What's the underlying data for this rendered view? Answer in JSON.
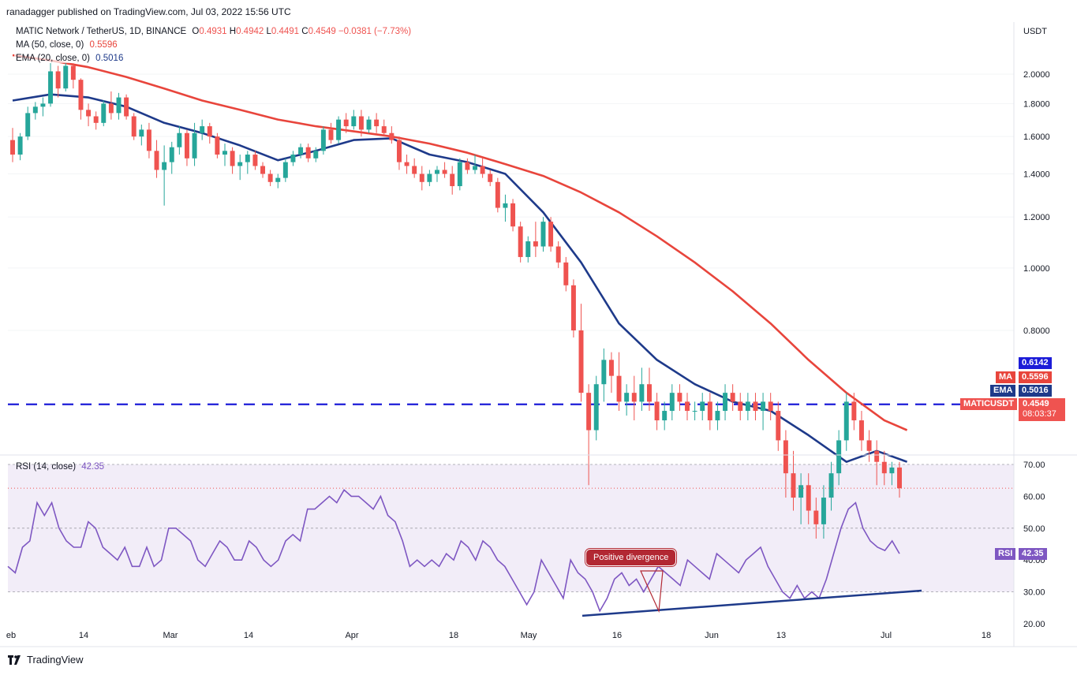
{
  "header": {
    "publisher": "ranadagger published on TradingView.com, Jul 03, 2022 15:56 UTC"
  },
  "legend": {
    "symbol_line": {
      "name": "MATIC Network / TetherUS, 1D, BINANCE",
      "open_label": "O",
      "open": "0.4931",
      "high_label": "H",
      "high": "0.4942",
      "low_label": "L",
      "low": "0.4491",
      "close_label": "C",
      "close": "0.4549",
      "change": "−0.0381 (−7.73%)"
    },
    "ma_line": {
      "name": "MA (50, close, 0)",
      "value": "0.5596"
    },
    "ema_line": {
      "name": "EMA (20, close, 0)",
      "value": "0.5016"
    },
    "rsi_line": {
      "name": "RSI (14, close)",
      "value": "42.35"
    }
  },
  "price_axis": {
    "currency": "USDT",
    "ticks": [
      "2.0000",
      "1.8000",
      "1.6000",
      "1.4000",
      "1.2000",
      "1.0000",
      "0.8000"
    ],
    "badges": {
      "level": "0.6142",
      "ma_label": "MA",
      "ma": "0.5596",
      "ema_label": "EMA",
      "ema": "0.5016",
      "symbol_label": "MATICUSDT",
      "last": "0.4549",
      "countdown": "08:03:37"
    }
  },
  "rsi_axis": {
    "ticks": [
      "70.00",
      "60.00",
      "50.00",
      "40.00",
      "30.00",
      "20.00"
    ],
    "badge_label": "RSI",
    "badge_value": "42.35"
  },
  "time_axis": {
    "ticks": [
      "eb",
      "14",
      "Mar",
      "14",
      "Apr",
      "18",
      "May",
      "16",
      "Jun",
      "13",
      "Jul",
      "18"
    ]
  },
  "annotation": {
    "text": "Positive divergence"
  },
  "footer": {
    "brand": "TradingView"
  },
  "colors": {
    "up": "#26a69a",
    "down": "#ef5350",
    "ma": "#e8453c",
    "ema": "#1e3a8a",
    "level_line": "#1c1cd8",
    "rsi_line": "#7e57c2",
    "rsi_band": "#ede7f6",
    "trendline": "#1e3a8a"
  },
  "chart_data": {
    "type": "candlestick",
    "symbol": "MATICUSDT",
    "interval": "1D",
    "x_range": [
      "2022-02-01",
      "2022-07-03"
    ],
    "y_range": [
      0.35,
      2.2
    ],
    "horizontal_level": 0.6142,
    "candles_ohlc": [
      [
        1.58,
        1.65,
        1.46,
        1.5
      ],
      [
        1.5,
        1.62,
        1.47,
        1.6
      ],
      [
        1.6,
        1.78,
        1.58,
        1.74
      ],
      [
        1.74,
        1.81,
        1.7,
        1.78
      ],
      [
        1.78,
        1.84,
        1.72,
        1.8
      ],
      [
        1.8,
        2.08,
        1.78,
        2.02
      ],
      [
        2.02,
        2.06,
        1.84,
        1.9
      ],
      [
        1.9,
        2.08,
        1.88,
        2.06
      ],
      [
        2.06,
        2.08,
        1.9,
        1.96
      ],
      [
        1.96,
        1.97,
        1.7,
        1.76
      ],
      [
        1.76,
        1.8,
        1.66,
        1.72
      ],
      [
        1.72,
        1.75,
        1.64,
        1.68
      ],
      [
        1.68,
        1.82,
        1.66,
        1.8
      ],
      [
        1.8,
        1.88,
        1.7,
        1.74
      ],
      [
        1.74,
        1.87,
        1.7,
        1.84
      ],
      [
        1.84,
        1.86,
        1.7,
        1.72
      ],
      [
        1.72,
        1.74,
        1.58,
        1.6
      ],
      [
        1.6,
        1.67,
        1.55,
        1.64
      ],
      [
        1.64,
        1.68,
        1.48,
        1.52
      ],
      [
        1.52,
        1.58,
        1.38,
        1.42
      ],
      [
        1.42,
        1.55,
        1.25,
        1.46
      ],
      [
        1.46,
        1.57,
        1.4,
        1.54
      ],
      [
        1.54,
        1.66,
        1.5,
        1.62
      ],
      [
        1.62,
        1.64,
        1.44,
        1.48
      ],
      [
        1.48,
        1.68,
        1.44,
        1.62
      ],
      [
        1.62,
        1.7,
        1.58,
        1.66
      ],
      [
        1.66,
        1.68,
        1.56,
        1.6
      ],
      [
        1.6,
        1.62,
        1.48,
        1.5
      ],
      [
        1.5,
        1.56,
        1.44,
        1.52
      ],
      [
        1.52,
        1.54,
        1.4,
        1.44
      ],
      [
        1.44,
        1.5,
        1.37,
        1.46
      ],
      [
        1.46,
        1.52,
        1.4,
        1.5
      ],
      [
        1.5,
        1.52,
        1.42,
        1.44
      ],
      [
        1.44,
        1.46,
        1.38,
        1.4
      ],
      [
        1.4,
        1.42,
        1.34,
        1.36
      ],
      [
        1.36,
        1.4,
        1.33,
        1.38
      ],
      [
        1.38,
        1.48,
        1.36,
        1.46
      ],
      [
        1.46,
        1.52,
        1.44,
        1.5
      ],
      [
        1.5,
        1.56,
        1.48,
        1.54
      ],
      [
        1.54,
        1.56,
        1.46,
        1.48
      ],
      [
        1.48,
        1.54,
        1.46,
        1.52
      ],
      [
        1.52,
        1.66,
        1.5,
        1.64
      ],
      [
        1.64,
        1.68,
        1.56,
        1.58
      ],
      [
        1.58,
        1.72,
        1.56,
        1.7
      ],
      [
        1.7,
        1.74,
        1.62,
        1.66
      ],
      [
        1.66,
        1.76,
        1.64,
        1.72
      ],
      [
        1.72,
        1.76,
        1.6,
        1.64
      ],
      [
        1.64,
        1.72,
        1.62,
        1.7
      ],
      [
        1.7,
        1.74,
        1.62,
        1.66
      ],
      [
        1.66,
        1.7,
        1.6,
        1.62
      ],
      [
        1.62,
        1.66,
        1.56,
        1.58
      ],
      [
        1.58,
        1.6,
        1.42,
        1.46
      ],
      [
        1.46,
        1.5,
        1.4,
        1.44
      ],
      [
        1.44,
        1.48,
        1.38,
        1.4
      ],
      [
        1.4,
        1.44,
        1.32,
        1.36
      ],
      [
        1.36,
        1.42,
        1.34,
        1.4
      ],
      [
        1.4,
        1.44,
        1.36,
        1.42
      ],
      [
        1.42,
        1.46,
        1.38,
        1.4
      ],
      [
        1.4,
        1.44,
        1.3,
        1.34
      ],
      [
        1.34,
        1.48,
        1.32,
        1.46
      ],
      [
        1.46,
        1.48,
        1.4,
        1.42
      ],
      [
        1.42,
        1.5,
        1.4,
        1.44
      ],
      [
        1.44,
        1.48,
        1.38,
        1.4
      ],
      [
        1.4,
        1.42,
        1.34,
        1.36
      ],
      [
        1.36,
        1.38,
        1.22,
        1.24
      ],
      [
        1.24,
        1.3,
        1.18,
        1.26
      ],
      [
        1.26,
        1.28,
        1.14,
        1.16
      ],
      [
        1.16,
        1.18,
        1.02,
        1.04
      ],
      [
        1.04,
        1.12,
        1.02,
        1.1
      ],
      [
        1.1,
        1.18,
        1.04,
        1.08
      ],
      [
        1.08,
        1.2,
        1.06,
        1.18
      ],
      [
        1.18,
        1.2,
        1.06,
        1.08
      ],
      [
        1.08,
        1.1,
        1.0,
        1.02
      ],
      [
        1.02,
        1.04,
        0.92,
        0.94
      ],
      [
        0.94,
        0.96,
        0.78,
        0.8
      ],
      [
        0.8,
        0.88,
        0.62,
        0.64
      ],
      [
        0.64,
        0.66,
        0.46,
        0.56
      ],
      [
        0.56,
        0.68,
        0.54,
        0.66
      ],
      [
        0.66,
        0.75,
        0.62,
        0.72
      ],
      [
        0.72,
        0.74,
        0.64,
        0.68
      ],
      [
        0.68,
        0.74,
        0.6,
        0.62
      ],
      [
        0.62,
        0.66,
        0.59,
        0.64
      ],
      [
        0.64,
        0.68,
        0.58,
        0.62
      ],
      [
        0.62,
        0.7,
        0.6,
        0.66
      ],
      [
        0.66,
        0.7,
        0.6,
        0.62
      ],
      [
        0.62,
        0.64,
        0.56,
        0.58
      ],
      [
        0.58,
        0.62,
        0.56,
        0.6
      ],
      [
        0.6,
        0.66,
        0.58,
        0.64
      ],
      [
        0.64,
        0.66,
        0.6,
        0.62
      ],
      [
        0.62,
        0.64,
        0.58,
        0.6
      ],
      [
        0.6,
        0.62,
        0.58,
        0.6
      ],
      [
        0.6,
        0.64,
        0.58,
        0.62
      ],
      [
        0.62,
        0.64,
        0.56,
        0.58
      ],
      [
        0.58,
        0.62,
        0.56,
        0.6
      ],
      [
        0.6,
        0.66,
        0.58,
        0.64
      ],
      [
        0.64,
        0.66,
        0.6,
        0.62
      ],
      [
        0.62,
        0.64,
        0.58,
        0.6
      ],
      [
        0.6,
        0.64,
        0.58,
        0.62
      ],
      [
        0.62,
        0.64,
        0.58,
        0.6
      ],
      [
        0.6,
        0.64,
        0.56,
        0.62
      ],
      [
        0.62,
        0.64,
        0.58,
        0.6
      ],
      [
        0.6,
        0.62,
        0.52,
        0.54
      ],
      [
        0.54,
        0.56,
        0.44,
        0.48
      ],
      [
        0.48,
        0.52,
        0.42,
        0.44
      ],
      [
        0.44,
        0.48,
        0.4,
        0.46
      ],
      [
        0.46,
        0.48,
        0.4,
        0.42
      ],
      [
        0.42,
        0.44,
        0.38,
        0.4
      ],
      [
        0.4,
        0.46,
        0.38,
        0.44
      ],
      [
        0.44,
        0.5,
        0.42,
        0.48
      ],
      [
        0.48,
        0.56,
        0.46,
        0.54
      ],
      [
        0.54,
        0.64,
        0.52,
        0.62
      ],
      [
        0.62,
        0.64,
        0.56,
        0.58
      ],
      [
        0.58,
        0.6,
        0.52,
        0.54
      ],
      [
        0.54,
        0.56,
        0.5,
        0.52
      ],
      [
        0.52,
        0.54,
        0.46,
        0.5
      ],
      [
        0.5,
        0.52,
        0.46,
        0.48
      ],
      [
        0.48,
        0.5,
        0.46,
        0.49
      ],
      [
        0.49,
        0.5,
        0.44,
        0.455
      ]
    ],
    "ma50": [
      [
        0,
        2.14
      ],
      [
        5,
        2.1
      ],
      [
        10,
        2.05
      ],
      [
        15,
        1.98
      ],
      [
        20,
        1.9
      ],
      [
        25,
        1.82
      ],
      [
        30,
        1.76
      ],
      [
        35,
        1.7
      ],
      [
        40,
        1.66
      ],
      [
        45,
        1.63
      ],
      [
        50,
        1.6
      ],
      [
        55,
        1.56
      ],
      [
        60,
        1.51
      ],
      [
        65,
        1.45
      ],
      [
        70,
        1.39
      ],
      [
        75,
        1.31
      ],
      [
        80,
        1.22
      ],
      [
        85,
        1.12
      ],
      [
        90,
        1.02
      ],
      [
        95,
        0.92
      ],
      [
        100,
        0.82
      ],
      [
        105,
        0.72
      ],
      [
        110,
        0.64
      ],
      [
        115,
        0.58
      ],
      [
        118,
        0.56
      ]
    ],
    "ema20": [
      [
        0,
        1.82
      ],
      [
        5,
        1.86
      ],
      [
        10,
        1.84
      ],
      [
        15,
        1.78
      ],
      [
        20,
        1.68
      ],
      [
        25,
        1.62
      ],
      [
        30,
        1.55
      ],
      [
        35,
        1.47
      ],
      [
        40,
        1.52
      ],
      [
        45,
        1.58
      ],
      [
        50,
        1.59
      ],
      [
        55,
        1.5
      ],
      [
        60,
        1.46
      ],
      [
        65,
        1.4
      ],
      [
        70,
        1.22
      ],
      [
        75,
        1.02
      ],
      [
        80,
        0.82
      ],
      [
        85,
        0.72
      ],
      [
        90,
        0.66
      ],
      [
        95,
        0.62
      ],
      [
        100,
        0.6
      ],
      [
        105,
        0.55
      ],
      [
        110,
        0.5
      ],
      [
        114,
        0.52
      ],
      [
        118,
        0.5
      ]
    ],
    "rsi": [
      38,
      36,
      44,
      46,
      58,
      54,
      58,
      50,
      46,
      44,
      44,
      52,
      50,
      44,
      42,
      40,
      44,
      38,
      38,
      44,
      38,
      40,
      50,
      50,
      48,
      46,
      40,
      38,
      42,
      46,
      44,
      40,
      40,
      46,
      44,
      40,
      38,
      40,
      46,
      48,
      46,
      56,
      56,
      58,
      60,
      58,
      62,
      60,
      60,
      58,
      56,
      60,
      54,
      52,
      46,
      38,
      40,
      38,
      40,
      38,
      42,
      40,
      46,
      44,
      40,
      46,
      44,
      40,
      38,
      34,
      30,
      26,
      30,
      40,
      36,
      32,
      28,
      40,
      36,
      34,
      30,
      24,
      28,
      34,
      36,
      32,
      34,
      30,
      34,
      38,
      36,
      34,
      32,
      40,
      38,
      36,
      34,
      42,
      40,
      38,
      36,
      40,
      42,
      44,
      38,
      34,
      30,
      28,
      32,
      28,
      30,
      28,
      34,
      42,
      50,
      56,
      58,
      50,
      46,
      44,
      43,
      46,
      42
    ]
  }
}
